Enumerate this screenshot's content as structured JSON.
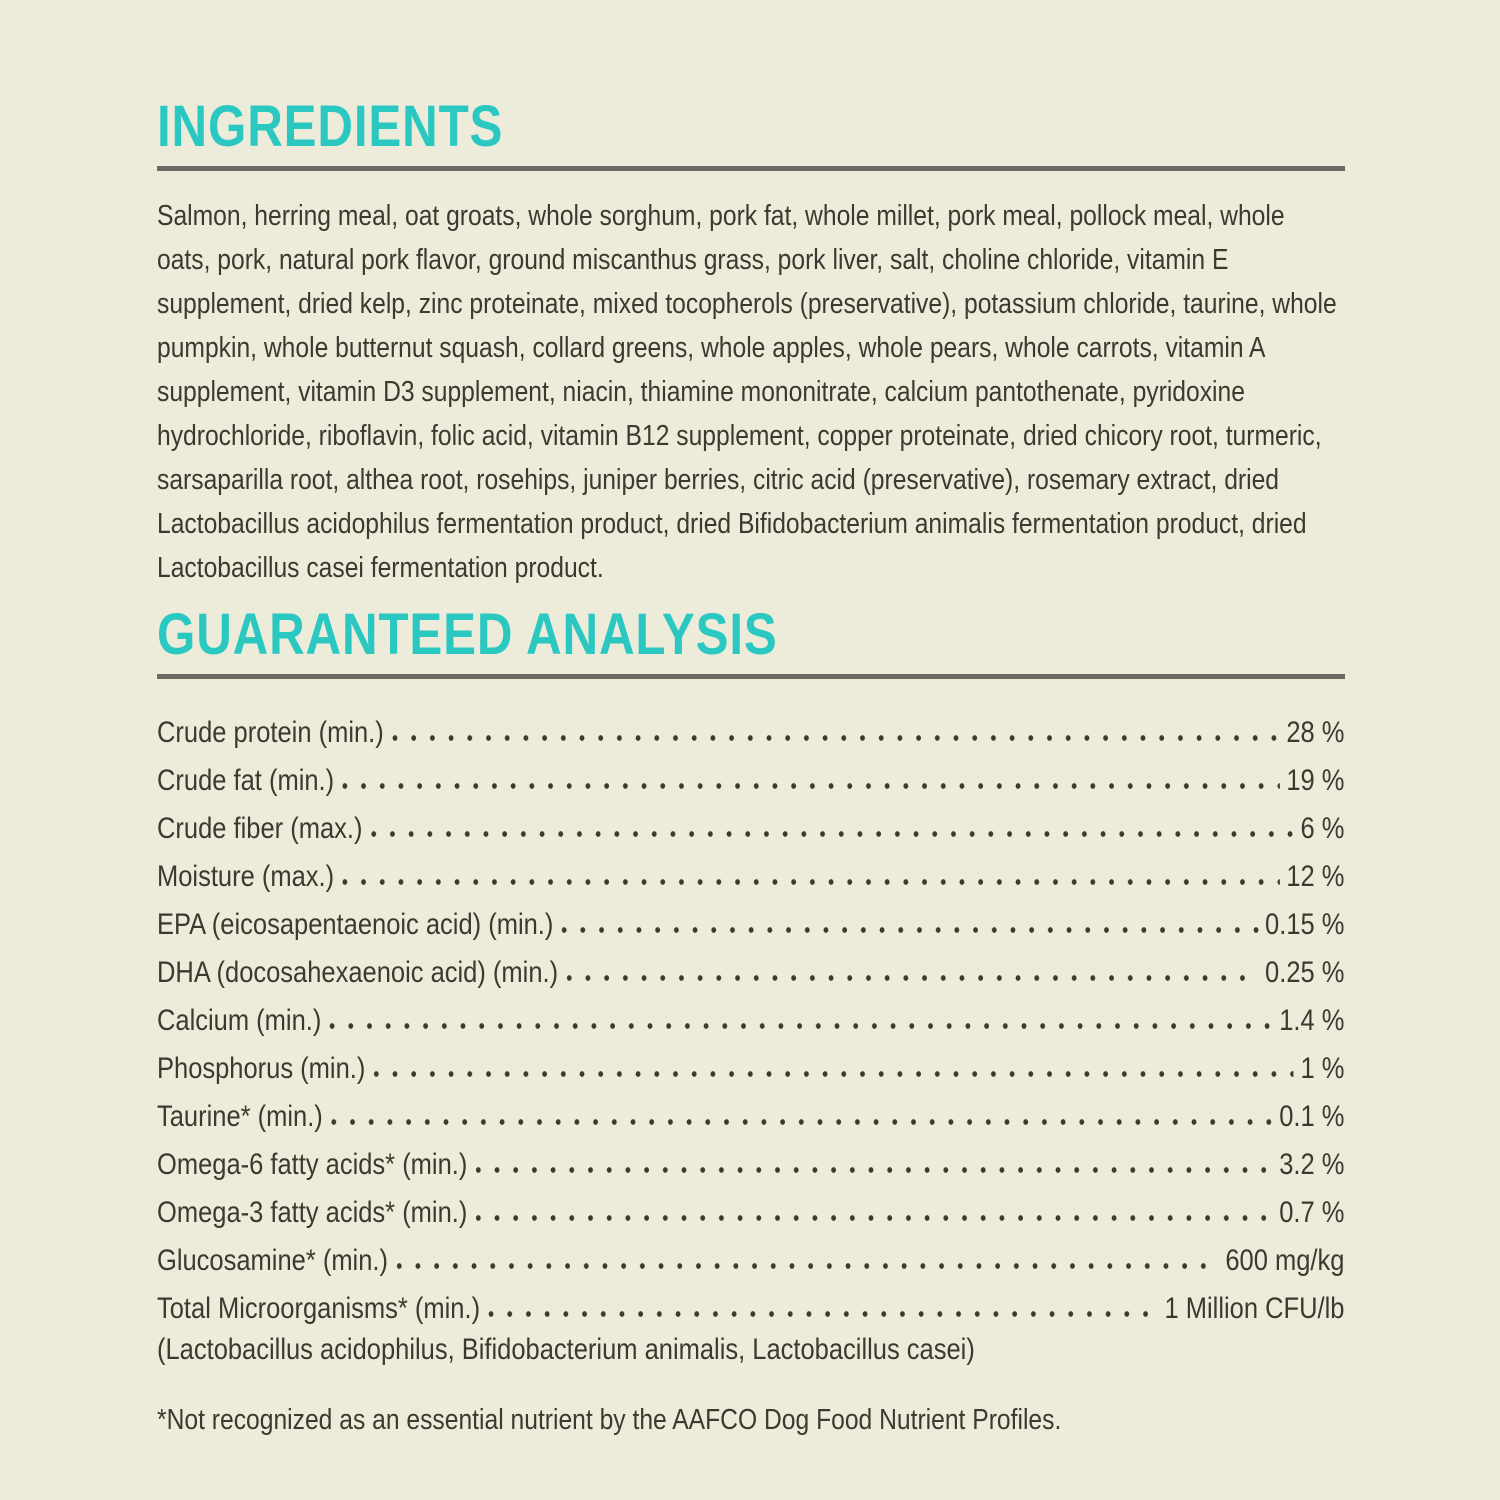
{
  "colors": {
    "background": "#EDECDB",
    "accent_teal": "#2BC8C2",
    "body_text": "#3B3A31",
    "rule_gray": "#6B6B64"
  },
  "ingredients": {
    "title": "INGREDIENTS",
    "text": "Salmon, herring meal, oat groats, whole sorghum, pork fat, whole millet, pork meal, pollock meal, whole oats, pork, natural pork flavor, ground miscanthus grass, pork liver, salt, choline chloride, vitamin E supplement, dried kelp, zinc proteinate, mixed tocopherols (preservative), potassium chloride, taurine, whole pumpkin, whole butternut squash, collard greens, whole apples, whole pears, whole carrots, vitamin A supplement, vitamin D3 supplement, niacin, thiamine mononitrate, calcium pantothenate, pyridoxine hydrochloride, riboflavin, folic acid, vitamin B12 supplement, copper proteinate, dried chicory root, turmeric, sarsaparilla root, althea root, rosehips, juniper berries, citric acid (preservative), rosemary extract, dried Lactobacillus acidophilus fermentation product, dried Bifidobacterium animalis fermentation product, dried Lactobacillus casei fermentation product."
  },
  "analysis": {
    "title": "GUARANTEED ANALYSIS",
    "rows": [
      {
        "label": "Crude protein (min.)",
        "value": "28 %"
      },
      {
        "label": "Crude fat (min.)",
        "value": "19 %"
      },
      {
        "label": "Crude fiber (max.)",
        "value": "6 %"
      },
      {
        "label": "Moisture (max.)",
        "value": "12 %"
      },
      {
        "label": "EPA (eicosapentaenoic acid) (min.)",
        "value": "0.15 %"
      },
      {
        "label": "DHA (docosahexaenoic acid) (min.)",
        "value": "0.25 %"
      },
      {
        "label": "Calcium (min.)",
        "value": "1.4 %"
      },
      {
        "label": "Phosphorus (min.)",
        "value": "1 %"
      },
      {
        "label": "Taurine* (min.)",
        "value": "0.1 %"
      },
      {
        "label": "Omega-6 fatty acids* (min.)",
        "value": "3.2 %"
      },
      {
        "label": "Omega-3 fatty acids* (min.)",
        "value": "0.7 %"
      },
      {
        "label": "Glucosamine* (min.)",
        "value": "600 mg/kg"
      },
      {
        "label": "Total Microorganisms* (min.)",
        "value": "1 Million CFU/lb"
      }
    ],
    "microorganisms_note": "(Lactobacillus acidophilus, Bifidobacterium animalis, Lactobacillus casei)",
    "footnote": "*Not recognized as an essential nutrient by the AAFCO Dog Food Nutrient Profiles."
  }
}
